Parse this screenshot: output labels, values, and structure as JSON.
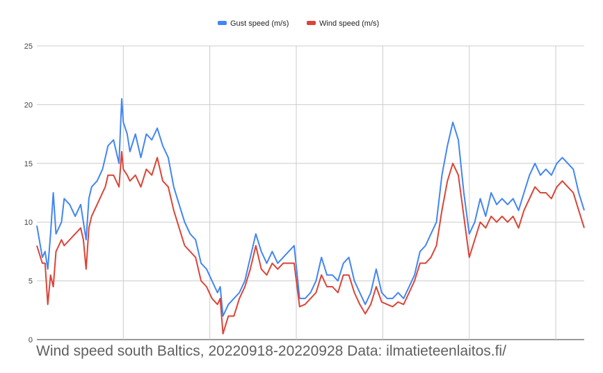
{
  "caption": "Wind speed south Baltics, 20220918-20220928 Data: ilmatieteenlaitos.fi/",
  "chart_data": {
    "type": "line",
    "title": "",
    "xlabel": "",
    "ylabel": "",
    "ylim": [
      0,
      25
    ],
    "yticks": [
      "0",
      "5",
      "10",
      "15",
      "20",
      "25"
    ],
    "x_range": [
      0,
      1.0
    ],
    "x_gridlines": [
      0.158,
      0.316,
      0.474,
      0.632,
      0.79,
      0.948
    ],
    "grid": true,
    "legend_position": "top-center",
    "series": [
      {
        "name": "Gust speed (m/s)",
        "color": "#4285f4",
        "x": [
          0.0,
          0.01,
          0.015,
          0.02,
          0.025,
          0.03,
          0.035,
          0.04,
          0.045,
          0.05,
          0.06,
          0.07,
          0.08,
          0.085,
          0.09,
          0.095,
          0.1,
          0.11,
          0.12,
          0.125,
          0.13,
          0.14,
          0.15,
          0.155,
          0.158,
          0.165,
          0.17,
          0.18,
          0.19,
          0.2,
          0.21,
          0.22,
          0.23,
          0.24,
          0.25,
          0.26,
          0.27,
          0.28,
          0.29,
          0.3,
          0.31,
          0.32,
          0.33,
          0.335,
          0.34,
          0.35,
          0.36,
          0.37,
          0.38,
          0.39,
          0.4,
          0.41,
          0.42,
          0.43,
          0.44,
          0.45,
          0.46,
          0.47,
          0.48,
          0.49,
          0.5,
          0.51,
          0.52,
          0.53,
          0.54,
          0.55,
          0.56,
          0.57,
          0.58,
          0.59,
          0.6,
          0.61,
          0.62,
          0.63,
          0.64,
          0.65,
          0.66,
          0.67,
          0.68,
          0.69,
          0.7,
          0.71,
          0.72,
          0.73,
          0.74,
          0.75,
          0.76,
          0.77,
          0.78,
          0.79,
          0.8,
          0.81,
          0.82,
          0.83,
          0.84,
          0.85,
          0.86,
          0.87,
          0.88,
          0.89,
          0.9,
          0.91,
          0.92,
          0.93,
          0.94,
          0.95,
          0.96,
          0.97,
          0.98,
          0.99,
          1.0
        ],
        "values": [
          9.7,
          7.0,
          7.5,
          6.0,
          9.0,
          12.5,
          9.0,
          9.5,
          10.0,
          12.0,
          11.5,
          10.5,
          11.5,
          10.0,
          8.5,
          12.0,
          13.0,
          13.5,
          14.5,
          15.5,
          16.5,
          17.0,
          15.0,
          20.5,
          18.5,
          17.5,
          16.0,
          17.5,
          15.5,
          17.5,
          17.0,
          18.0,
          16.5,
          15.5,
          13.0,
          11.5,
          10.0,
          9.0,
          8.5,
          6.5,
          6.0,
          5.0,
          4.0,
          4.5,
          2.0,
          3.0,
          3.5,
          4.0,
          5.0,
          7.0,
          9.0,
          7.5,
          6.5,
          7.5,
          6.5,
          7.0,
          7.5,
          8.0,
          3.5,
          3.5,
          4.0,
          5.0,
          7.0,
          5.5,
          5.5,
          5.0,
          6.5,
          7.0,
          5.0,
          4.0,
          3.0,
          4.0,
          6.0,
          4.0,
          3.5,
          3.5,
          4.0,
          3.5,
          4.5,
          5.5,
          7.5,
          8.0,
          9.0,
          10.0,
          14.0,
          16.5,
          18.5,
          17.0,
          12.5,
          9.0,
          10.0,
          12.0,
          10.5,
          12.5,
          11.5,
          12.0,
          11.5,
          12.0,
          11.0,
          12.5,
          14.0,
          15.0,
          14.0,
          14.5,
          14.0,
          15.0,
          15.5,
          15.0,
          14.5,
          12.5,
          11.0
        ]
      },
      {
        "name": "Wind speed (m/s)",
        "color": "#db4437",
        "x": [
          0.0,
          0.01,
          0.015,
          0.02,
          0.025,
          0.03,
          0.035,
          0.04,
          0.045,
          0.05,
          0.06,
          0.07,
          0.08,
          0.085,
          0.09,
          0.095,
          0.1,
          0.11,
          0.12,
          0.125,
          0.13,
          0.14,
          0.15,
          0.155,
          0.158,
          0.165,
          0.17,
          0.18,
          0.19,
          0.2,
          0.21,
          0.22,
          0.23,
          0.24,
          0.25,
          0.26,
          0.27,
          0.28,
          0.29,
          0.3,
          0.31,
          0.32,
          0.33,
          0.335,
          0.34,
          0.35,
          0.36,
          0.37,
          0.38,
          0.39,
          0.4,
          0.41,
          0.42,
          0.43,
          0.44,
          0.45,
          0.46,
          0.47,
          0.48,
          0.49,
          0.5,
          0.51,
          0.52,
          0.53,
          0.54,
          0.55,
          0.56,
          0.57,
          0.58,
          0.59,
          0.6,
          0.61,
          0.62,
          0.63,
          0.64,
          0.65,
          0.66,
          0.67,
          0.68,
          0.69,
          0.7,
          0.71,
          0.72,
          0.73,
          0.74,
          0.75,
          0.76,
          0.77,
          0.78,
          0.79,
          0.8,
          0.81,
          0.82,
          0.83,
          0.84,
          0.85,
          0.86,
          0.87,
          0.88,
          0.89,
          0.9,
          0.91,
          0.92,
          0.93,
          0.94,
          0.95,
          0.96,
          0.97,
          0.98,
          0.99,
          1.0
        ],
        "values": [
          8.0,
          6.5,
          6.5,
          3.0,
          5.5,
          4.5,
          7.5,
          8.0,
          8.5,
          8.0,
          8.5,
          9.0,
          9.5,
          8.5,
          6.0,
          9.5,
          10.5,
          11.5,
          12.5,
          13.0,
          14.0,
          14.0,
          13.0,
          16.0,
          14.5,
          14.0,
          13.5,
          14.0,
          13.0,
          14.5,
          14.0,
          15.5,
          13.5,
          13.0,
          11.0,
          9.5,
          8.0,
          7.5,
          7.0,
          5.0,
          4.5,
          3.5,
          3.0,
          3.5,
          0.5,
          2.0,
          2.0,
          3.5,
          4.5,
          6.0,
          8.0,
          6.0,
          5.5,
          6.5,
          6.0,
          6.5,
          6.5,
          6.5,
          2.8,
          3.0,
          3.5,
          4.0,
          5.5,
          4.5,
          4.5,
          4.0,
          5.5,
          5.5,
          4.0,
          3.0,
          2.2,
          3.0,
          4.5,
          3.2,
          3.0,
          2.8,
          3.2,
          3.0,
          4.0,
          5.0,
          6.5,
          6.5,
          7.0,
          8.0,
          11.0,
          13.5,
          15.0,
          14.0,
          10.5,
          7.0,
          8.5,
          10.0,
          9.5,
          10.5,
          10.0,
          10.5,
          10.0,
          10.5,
          9.5,
          11.0,
          12.0,
          13.0,
          12.5,
          12.5,
          12.0,
          13.0,
          13.5,
          13.0,
          12.5,
          11.0,
          9.5
        ]
      }
    ]
  }
}
